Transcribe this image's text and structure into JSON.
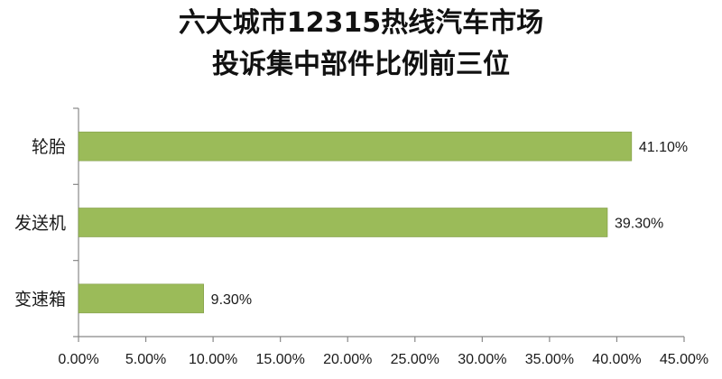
{
  "chart_data": {
    "type": "bar",
    "orientation": "horizontal",
    "title_lines": [
      "六大城市12315热线汽车市场",
      "投诉集中部件比例前三位"
    ],
    "categories": [
      "轮胎",
      "发送机",
      "变速箱"
    ],
    "values": [
      41.1,
      39.3,
      9.3
    ],
    "value_labels": [
      "41.10%",
      "39.30%",
      "9.30%"
    ],
    "xlim": [
      0,
      45
    ],
    "xticks": [
      0,
      5,
      10,
      15,
      20,
      25,
      30,
      35,
      40,
      45
    ],
    "xtick_labels": [
      "0.00%",
      "5.00%",
      "10.00%",
      "15.00%",
      "20.00%",
      "25.00%",
      "30.00%",
      "35.00%",
      "40.00%",
      "45.00%"
    ],
    "grid": false,
    "legend": "none",
    "colors": {
      "bar": "#9bbb59",
      "bar_edge": "#7f9a45",
      "axis": "#888888"
    }
  }
}
